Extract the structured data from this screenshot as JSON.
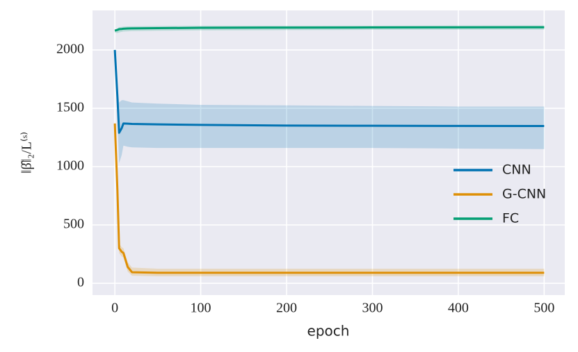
{
  "chart_data": {
    "type": "line",
    "x_label": "epoch",
    "y_label": "‖β̂‖₂/L⁽ˢ⁾",
    "x": [
      0,
      3,
      5,
      8,
      10,
      15,
      20,
      50,
      100,
      200,
      300,
      400,
      500
    ],
    "series": [
      {
        "name": "CNN",
        "color": "#0173b2",
        "values": [
          2000,
          1600,
          1290,
          1330,
          1370,
          1368,
          1366,
          1362,
          1358,
          1352,
          1350,
          1349,
          1348
        ],
        "lower": [
          2000,
          1400,
          1030,
          1100,
          1180,
          1170,
          1165,
          1160,
          1160,
          1160,
          1160,
          1155,
          1150
        ],
        "upper": [
          2000,
          1700,
          1550,
          1570,
          1570,
          1560,
          1550,
          1540,
          1530,
          1525,
          1520,
          1515,
          1515
        ]
      },
      {
        "name": "G-CNN",
        "color": "#de8f05",
        "values": [
          1370,
          800,
          300,
          270,
          260,
          140,
          95,
          90,
          90,
          90,
          90,
          90,
          90
        ],
        "lower": [
          1370,
          760,
          260,
          230,
          220,
          100,
          65,
          60,
          60,
          60,
          60,
          60,
          60
        ],
        "upper": [
          1370,
          840,
          340,
          310,
          300,
          180,
          135,
          125,
          125,
          125,
          125,
          125,
          125
        ]
      },
      {
        "name": "FC",
        "color": "#029e73",
        "values": [
          2165,
          2172,
          2178,
          2180,
          2182,
          2184,
          2185,
          2187,
          2190,
          2192,
          2193,
          2194,
          2195
        ],
        "lower": [
          2150,
          2145,
          2150,
          2155,
          2158,
          2160,
          2162,
          2165,
          2168,
          2170,
          2172,
          2173,
          2174
        ],
        "upper": [
          2175,
          2185,
          2195,
          2198,
          2200,
          2202,
          2203,
          2205,
          2207,
          2208,
          2209,
          2210,
          2210
        ]
      }
    ],
    "xlim": [
      -26,
      524
    ],
    "ylim": [
      -101,
      2339
    ],
    "xticks": [
      0,
      100,
      200,
      300,
      400,
      500
    ],
    "yticks": [
      0,
      500,
      1000,
      1500,
      2000
    ],
    "grid": true,
    "legend": "right"
  }
}
